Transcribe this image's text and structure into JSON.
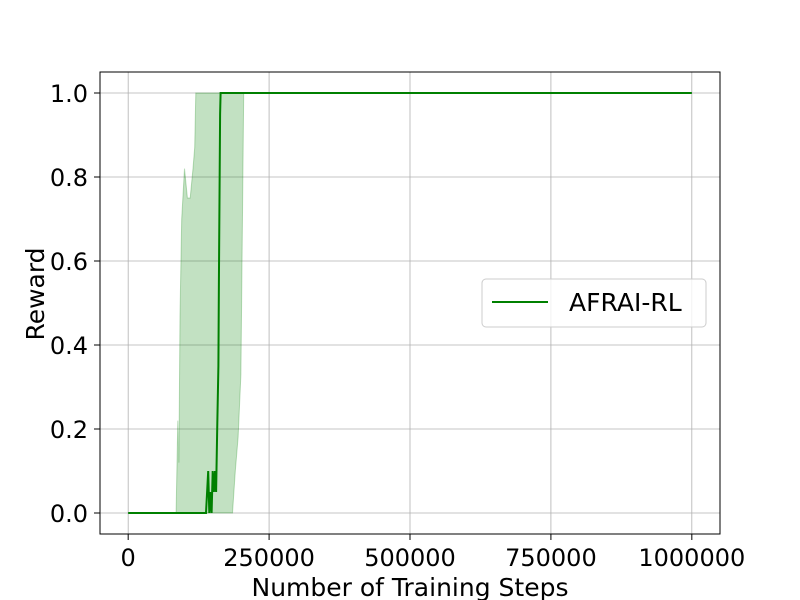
{
  "chart_data": {
    "type": "line",
    "title": "",
    "xlabel": "Number of Training Steps",
    "ylabel": "Reward",
    "xlim": [
      -50000,
      1050000
    ],
    "ylim": [
      -0.05,
      1.05
    ],
    "x_ticks": [
      0,
      250000,
      500000,
      750000,
      1000000
    ],
    "x_tick_labels": [
      "0",
      "250000",
      "500000",
      "750000",
      "1000000"
    ],
    "y_ticks": [
      0.0,
      0.2,
      0.4,
      0.6,
      0.8,
      1.0
    ],
    "y_tick_labels": [
      "0.0",
      "0.2",
      "0.4",
      "0.6",
      "0.8",
      "1.0"
    ],
    "grid": true,
    "legend": {
      "position": "center-right",
      "entries": [
        "AFRAI-RL"
      ]
    },
    "series": [
      {
        "name": "AFRAI-RL",
        "color": "#008000",
        "x": [
          0,
          88000,
          100000,
          138000,
          140000,
          142000,
          144000,
          146000,
          148000,
          150000,
          152000,
          154000,
          156000,
          158000,
          160000,
          161000,
          162000,
          163000,
          164000,
          165000,
          200000,
          400000,
          600000,
          800000,
          1000000
        ],
        "y": [
          0,
          0,
          0,
          0,
          0.05,
          0.1,
          0.0,
          0.05,
          0.0,
          0.1,
          0.05,
          0.1,
          0.05,
          0.2,
          0.35,
          0.55,
          0.75,
          0.95,
          1.0,
          1.0,
          1.0,
          1.0,
          1.0,
          1.0,
          1.0
        ],
        "band": {
          "color": "#008000",
          "opacity": 0.24,
          "x": [
            0,
            85000,
            88000,
            90000,
            92000,
            95000,
            100000,
            105000,
            110000,
            115000,
            118000,
            120000,
            125000,
            130000,
            140000,
            150000,
            160000,
            170000,
            180000,
            185000,
            190000,
            195000,
            200000,
            205000,
            210000,
            250000,
            1000000
          ],
          "upper": [
            0,
            0,
            0.22,
            0.12,
            0.47,
            0.7,
            0.82,
            0.75,
            0.75,
            0.82,
            0.87,
            1.0,
            1.0,
            1.0,
            1.0,
            1.0,
            1.0,
            1.0,
            1.0,
            1.0,
            1.0,
            1.0,
            1.0,
            1.0,
            1.0,
            1.0,
            1.0
          ],
          "lower": [
            0,
            0,
            0,
            0,
            0,
            0,
            0,
            0,
            0,
            0,
            0,
            0,
            0,
            0,
            0,
            0,
            0,
            0,
            0,
            0,
            0.1,
            0.18,
            0.33,
            1.0,
            1.0,
            1.0,
            1.0
          ]
        }
      }
    ]
  }
}
